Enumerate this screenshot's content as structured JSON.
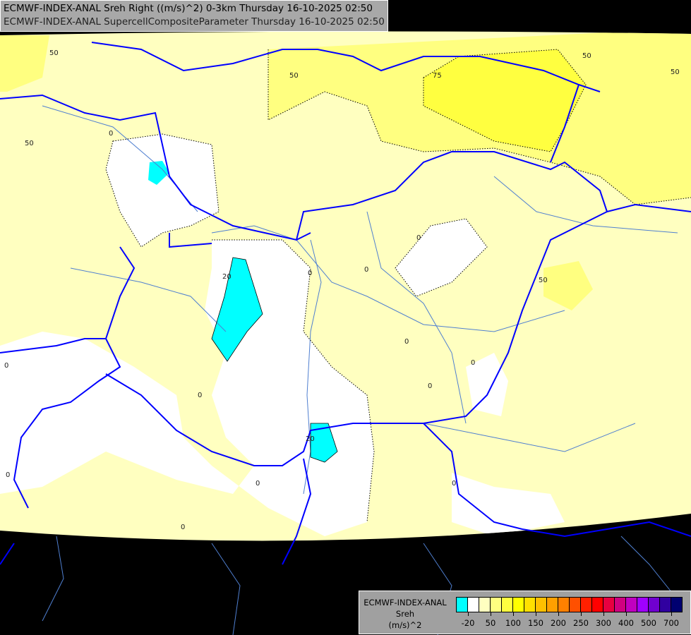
{
  "title": {
    "line1": "ECMWF-INDEX-ANAL Sreh Right ((m/s)^2) 0-3km Thursday 16-10-2025 02:50",
    "line2": "ECMWF-INDEX-ANAL SupercellCompositeParameter Thursday 16-10-2025 02:50"
  },
  "legend": {
    "model": "ECMWF-INDEX-ANAL",
    "variable": "Sreh",
    "unit": "(m/s)^2",
    "colors": [
      "#00ffff",
      "#ffffff",
      "#ffffc0",
      "#ffff80",
      "#ffff40",
      "#ffff00",
      "#ffe000",
      "#ffc000",
      "#ffa000",
      "#ff8000",
      "#ff5000",
      "#ff2000",
      "#ff0000",
      "#e80040",
      "#d00080",
      "#c000c0",
      "#a000ff",
      "#7000d0",
      "#3000a0",
      "#000070"
    ],
    "tick_labels": [
      "-20",
      "50",
      "100",
      "150",
      "200",
      "250",
      "300",
      "400",
      "500",
      "700"
    ]
  },
  "contour_labels": [
    "50",
    "50",
    "50",
    "0",
    "75",
    "50",
    "0",
    "20",
    "0",
    "0",
    "0",
    "50",
    "0",
    "0",
    "0",
    "0",
    "20",
    "0",
    "0",
    "0",
    "0",
    "50"
  ],
  "colors": {
    "border": "#0000ff",
    "river": "#4f7fd0",
    "background": "#000000"
  }
}
